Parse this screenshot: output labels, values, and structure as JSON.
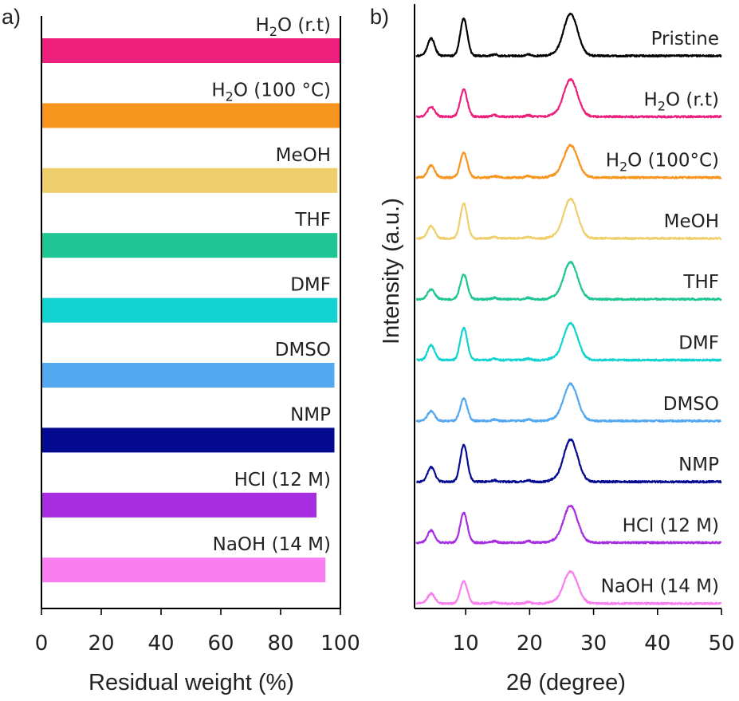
{
  "chart_data": [
    {
      "panel": "a)",
      "type": "bar",
      "orientation": "horizontal",
      "xlabel": "Residual weight (%)",
      "xlim": [
        0,
        100
      ],
      "xticks": [
        "0",
        "20",
        "40",
        "60",
        "80",
        "100"
      ],
      "categories": [
        "H2O (r.t)",
        "H2O (100 °C)",
        "MeOH",
        "THF",
        "DMF",
        "DMSO",
        "NMP",
        "HCl (12 M)",
        "NaOH (14 M)"
      ],
      "values": [
        100,
        100,
        99,
        99,
        99,
        98,
        98,
        92,
        95
      ],
      "colors": [
        "#ec1f7d",
        "#f7941d",
        "#efcf6b",
        "#1fc592",
        "#12d3cf",
        "#54a8f0",
        "#050b91",
        "#a62ee0",
        "#f97ff0"
      ]
    },
    {
      "panel": "b)",
      "type": "line",
      "xlabel": "2θ (degree)",
      "ylabel": "Intensity (a.u.)",
      "xlim": [
        2,
        50
      ],
      "xticks": [
        "10",
        "20",
        "30",
        "40",
        "50"
      ],
      "peaks_2theta": [
        4.6,
        9.7,
        26.4
      ],
      "series": [
        {
          "name": "Pristine",
          "color": "#000000",
          "peak_heights": [
            0.35,
            0.75,
            0.85
          ]
        },
        {
          "name": "H2O (r.t)",
          "color": "#ec1f7d",
          "peak_heights": [
            0.2,
            0.55,
            0.75
          ]
        },
        {
          "name": "H2O (100°C)",
          "color": "#f7941d",
          "peak_heights": [
            0.25,
            0.5,
            0.65
          ]
        },
        {
          "name": "MeOH",
          "color": "#efcf6b",
          "peak_heights": [
            0.25,
            0.7,
            0.8
          ]
        },
        {
          "name": "THF",
          "color": "#1fc592",
          "peak_heights": [
            0.2,
            0.5,
            0.75
          ]
        },
        {
          "name": "DMF",
          "color": "#12d3cf",
          "peak_heights": [
            0.3,
            0.65,
            0.75
          ]
        },
        {
          "name": "DMSO",
          "color": "#54a8f0",
          "peak_heights": [
            0.2,
            0.45,
            0.75
          ]
        },
        {
          "name": "NMP",
          "color": "#050b91",
          "peak_heights": [
            0.3,
            0.75,
            0.85
          ]
        },
        {
          "name": "HCl (12 M)",
          "color": "#a62ee0",
          "peak_heights": [
            0.25,
            0.6,
            0.75
          ]
        },
        {
          "name": "NaOH (14 M)",
          "color": "#f97ff0",
          "peak_heights": [
            0.2,
            0.45,
            0.65
          ]
        }
      ]
    }
  ]
}
